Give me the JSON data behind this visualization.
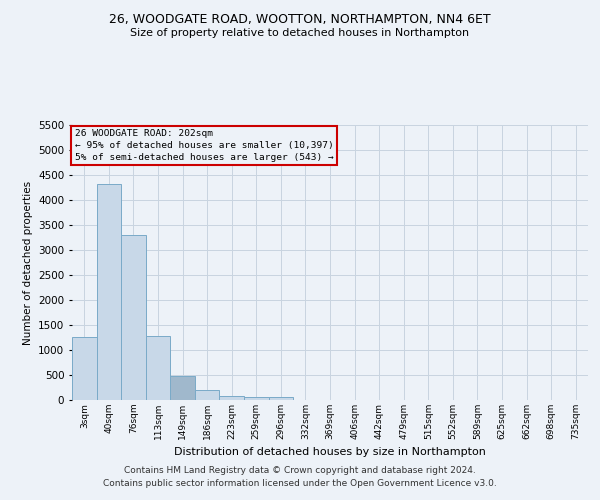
{
  "title_line1": "26, WOODGATE ROAD, WOOTTON, NORTHAMPTON, NN4 6ET",
  "title_line2": "Size of property relative to detached houses in Northampton",
  "xlabel": "Distribution of detached houses by size in Northampton",
  "ylabel": "Number of detached properties",
  "footer_line1": "Contains HM Land Registry data © Crown copyright and database right 2024.",
  "footer_line2": "Contains public sector information licensed under the Open Government Licence v3.0.",
  "annotation_line1": "26 WOODGATE ROAD: 202sqm",
  "annotation_line2": "← 95% of detached houses are smaller (10,397)",
  "annotation_line3": "5% of semi-detached houses are larger (543) →",
  "bar_values": [
    1270,
    4320,
    3300,
    1280,
    490,
    210,
    90,
    60,
    60,
    0,
    0,
    0,
    0,
    0,
    0,
    0,
    0,
    0,
    0,
    0,
    0
  ],
  "bar_color": "#c8d8e8",
  "bar_edge_color": "#7aaac8",
  "highlight_bar_index": 4,
  "highlight_bar_color": "#a0b8cc",
  "categories": [
    "3sqm",
    "40sqm",
    "76sqm",
    "113sqm",
    "149sqm",
    "186sqm",
    "223sqm",
    "259sqm",
    "296sqm",
    "332sqm",
    "369sqm",
    "406sqm",
    "442sqm",
    "479sqm",
    "515sqm",
    "552sqm",
    "589sqm",
    "625sqm",
    "662sqm",
    "698sqm",
    "735sqm"
  ],
  "ylim": [
    0,
    5500
  ],
  "yticks": [
    0,
    500,
    1000,
    1500,
    2000,
    2500,
    3000,
    3500,
    4000,
    4500,
    5000,
    5500
  ],
  "grid_color": "#c8d4e0",
  "bg_color": "#edf2f8",
  "annotation_box_color": "#cc0000",
  "title_fontsize": 9,
  "subtitle_fontsize": 8,
  "footer_fontsize": 6.5
}
